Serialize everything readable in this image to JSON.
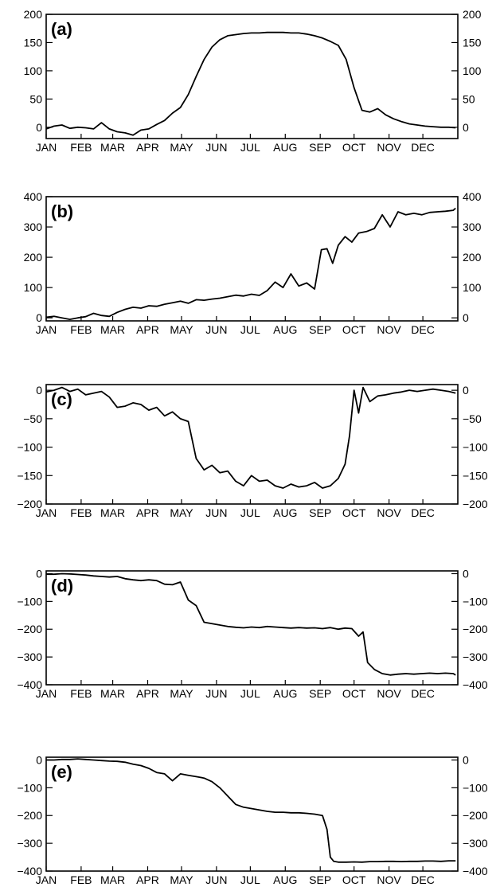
{
  "chart_data": [
    {
      "type": "line",
      "panel_label": "(a)",
      "title": "",
      "xlabel": "",
      "ylabel": "",
      "x_ticks": [
        "JAN",
        "FEB",
        "MAR",
        "APR",
        "MAY",
        "JUN",
        "JUL",
        "AUG",
        "SEP",
        "OCT",
        "NOV",
        "DEC"
      ],
      "ylim": [
        -20,
        200
      ],
      "y_ticks": [
        0,
        50,
        100,
        150,
        200
      ],
      "y_tick_labels": [
        "0",
        "50",
        "100",
        "150",
        "200"
      ],
      "grid": false,
      "series": [
        {
          "x": [
            1,
            8,
            15,
            22,
            29,
            36,
            43,
            50,
            57,
            64,
            71,
            78,
            85,
            92,
            99,
            106,
            113,
            120,
            127,
            134,
            141,
            148,
            155,
            162,
            169,
            176,
            183,
            190,
            197,
            204,
            211,
            218,
            225,
            232,
            239,
            246,
            253,
            260,
            267,
            274,
            281,
            288,
            295,
            302,
            309,
            316,
            323,
            330,
            337,
            344,
            351,
            358,
            364
          ],
          "values": [
            -3,
            2,
            4,
            -2,
            0,
            -1,
            -3,
            8,
            -3,
            -8,
            -10,
            -14,
            -5,
            -3,
            5,
            12,
            25,
            35,
            58,
            90,
            120,
            142,
            155,
            162,
            164,
            166,
            167,
            167,
            168,
            168,
            168,
            167,
            167,
            165,
            162,
            158,
            152,
            145,
            120,
            70,
            30,
            27,
            33,
            22,
            15,
            10,
            6,
            4,
            2,
            1,
            0,
            0,
            -1
          ]
        }
      ]
    },
    {
      "type": "line",
      "panel_label": "(b)",
      "title": "",
      "xlabel": "",
      "ylabel": "",
      "x_ticks": [
        "JAN",
        "FEB",
        "MAR",
        "APR",
        "MAY",
        "JUN",
        "JUL",
        "AUG",
        "SEP",
        "OCT",
        "NOV",
        "DEC"
      ],
      "ylim": [
        -10,
        400
      ],
      "y_ticks": [
        0,
        100,
        200,
        300,
        400
      ],
      "y_tick_labels": [
        "0",
        "100",
        "200",
        "300",
        "400"
      ],
      "grid": false,
      "series": [
        {
          "x": [
            1,
            8,
            15,
            22,
            29,
            36,
            43,
            50,
            57,
            64,
            71,
            78,
            85,
            92,
            99,
            106,
            113,
            120,
            127,
            134,
            141,
            148,
            155,
            162,
            169,
            176,
            183,
            190,
            197,
            204,
            211,
            218,
            225,
            232,
            239,
            245,
            250,
            255,
            260,
            266,
            272,
            278,
            285,
            292,
            299,
            306,
            313,
            320,
            327,
            334,
            341,
            348,
            355,
            362,
            364
          ],
          "values": [
            2,
            5,
            0,
            -5,
            0,
            4,
            15,
            8,
            5,
            18,
            28,
            35,
            32,
            40,
            38,
            45,
            50,
            55,
            48,
            60,
            58,
            62,
            65,
            70,
            75,
            72,
            78,
            74,
            90,
            118,
            100,
            145,
            105,
            115,
            95,
            225,
            228,
            180,
            240,
            268,
            250,
            280,
            285,
            295,
            340,
            300,
            350,
            340,
            345,
            340,
            348,
            350,
            352,
            355,
            362
          ]
        }
      ]
    },
    {
      "type": "line",
      "panel_label": "(c)",
      "title": "",
      "xlabel": "",
      "ylabel": "",
      "x_ticks": [
        "JAN",
        "FEB",
        "MAR",
        "APR",
        "MAY",
        "JUN",
        "JUL",
        "AUG",
        "SEP",
        "OCT",
        "NOV",
        "DEC"
      ],
      "ylim": [
        -200,
        10
      ],
      "y_ticks": [
        0,
        -50,
        -100,
        -150,
        -200
      ],
      "y_tick_labels": [
        "0",
        "−50",
        "−100",
        "−150",
        "−200"
      ],
      "grid": false,
      "series": [
        {
          "x": [
            1,
            8,
            15,
            22,
            29,
            36,
            43,
            50,
            57,
            64,
            71,
            78,
            85,
            92,
            99,
            106,
            113,
            120,
            127,
            134,
            141,
            148,
            155,
            162,
            169,
            176,
            183,
            190,
            197,
            204,
            211,
            218,
            225,
            232,
            239,
            246,
            253,
            260,
            266,
            270,
            274,
            278,
            282,
            288,
            295,
            302,
            309,
            316,
            323,
            330,
            337,
            344,
            351,
            358,
            364
          ],
          "values": [
            -3,
            0,
            5,
            -2,
            2,
            -8,
            -5,
            -2,
            -12,
            -30,
            -28,
            -22,
            -25,
            -35,
            -30,
            -45,
            -38,
            -50,
            -55,
            -120,
            -140,
            -132,
            -145,
            -142,
            -160,
            -168,
            -150,
            -160,
            -158,
            -168,
            -172,
            -165,
            -170,
            -168,
            -162,
            -172,
            -168,
            -155,
            -130,
            -80,
            0,
            -40,
            5,
            -20,
            -10,
            -8,
            -5,
            -3,
            0,
            -2,
            0,
            2,
            0,
            -2,
            -5
          ]
        }
      ]
    },
    {
      "type": "line",
      "panel_label": "(d)",
      "title": "",
      "xlabel": "",
      "ylabel": "",
      "x_ticks": [
        "JAN",
        "FEB",
        "MAR",
        "APR",
        "MAY",
        "JUN",
        "JUL",
        "AUG",
        "SEP",
        "OCT",
        "NOV",
        "DEC"
      ],
      "ylim": [
        -400,
        10
      ],
      "y_ticks": [
        0,
        -100,
        -200,
        -300,
        -400
      ],
      "y_tick_labels": [
        "0",
        "−100",
        "−200",
        "−300",
        "−400"
      ],
      "grid": false,
      "series": [
        {
          "x": [
            1,
            8,
            15,
            22,
            29,
            36,
            43,
            50,
            57,
            64,
            71,
            78,
            85,
            92,
            99,
            106,
            113,
            120,
            127,
            134,
            141,
            148,
            155,
            162,
            169,
            176,
            183,
            190,
            197,
            204,
            211,
            218,
            225,
            232,
            239,
            246,
            253,
            260,
            266,
            272,
            278,
            282,
            286,
            292,
            299,
            306,
            313,
            320,
            327,
            334,
            341,
            348,
            355,
            362,
            364
          ],
          "values": [
            -2,
            -2,
            0,
            -1,
            -3,
            -5,
            -8,
            -10,
            -12,
            -10,
            -18,
            -22,
            -25,
            -22,
            -25,
            -38,
            -40,
            -30,
            -95,
            -115,
            -175,
            -180,
            -185,
            -190,
            -193,
            -195,
            -192,
            -194,
            -190,
            -192,
            -194,
            -196,
            -194,
            -196,
            -195,
            -198,
            -194,
            -200,
            -196,
            -198,
            -225,
            -210,
            -320,
            -345,
            -360,
            -365,
            -362,
            -360,
            -362,
            -360,
            -358,
            -360,
            -358,
            -360,
            -365
          ]
        }
      ]
    },
    {
      "type": "line",
      "panel_label": "(e)",
      "title": "",
      "xlabel": "",
      "ylabel": "",
      "x_ticks": [
        "JAN",
        "FEB",
        "MAR",
        "APR",
        "MAY",
        "JUN",
        "JUL",
        "AUG",
        "SEP",
        "OCT",
        "NOV",
        "DEC"
      ],
      "ylim": [
        -400,
        10
      ],
      "y_ticks": [
        0,
        -100,
        -200,
        -300,
        -400
      ],
      "y_tick_labels": [
        "0",
        "−100",
        "−200",
        "−300",
        "−400"
      ],
      "grid": false,
      "series": [
        {
          "x": [
            1,
            8,
            15,
            22,
            29,
            36,
            43,
            50,
            57,
            64,
            71,
            78,
            85,
            92,
            99,
            106,
            113,
            120,
            127,
            134,
            141,
            148,
            155,
            162,
            169,
            176,
            183,
            190,
            197,
            204,
            211,
            218,
            225,
            232,
            239,
            246,
            250,
            253,
            256,
            260,
            267,
            274,
            281,
            288,
            295,
            302,
            309,
            316,
            323,
            330,
            337,
            344,
            351,
            358,
            364
          ],
          "values": [
            0,
            0,
            2,
            2,
            4,
            2,
            0,
            -2,
            -4,
            -5,
            -8,
            -15,
            -20,
            -30,
            -45,
            -50,
            -75,
            -50,
            -55,
            -60,
            -65,
            -78,
            -100,
            -130,
            -160,
            -170,
            -175,
            -180,
            -185,
            -188,
            -188,
            -190,
            -190,
            -192,
            -195,
            -200,
            -250,
            -350,
            -365,
            -368,
            -368,
            -367,
            -368,
            -366,
            -366,
            -365,
            -365,
            -366,
            -365,
            -365,
            -364,
            -364,
            -365,
            -363,
            -363
          ]
        }
      ]
    }
  ]
}
